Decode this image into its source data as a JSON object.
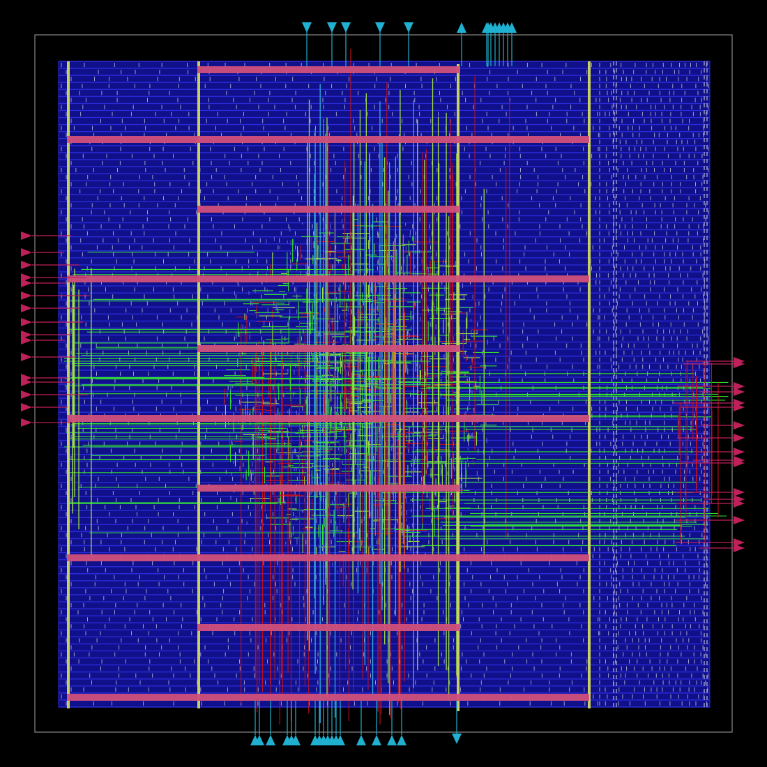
{
  "colors": {
    "background": "#000000",
    "die_boundary": "#8a8a8a",
    "core_area": "#10108a",
    "std_cell_row": "#2a2ad8",
    "cell_tick": "#b8b8d8",
    "power_stripe_horizontal": "#d0507a",
    "power_stripe_vertical": "#c8d060",
    "pin_horizontal": "#c0205a",
    "pin_vertical": "#20b0d0",
    "route_metal1": "#c01020",
    "route_metal2": "#30e030",
    "route_metal3": "#a0e040",
    "route_metal4": "#30b0e0",
    "route_metal5": "#e07030"
  },
  "layout": {
    "std_cell_rows": 92,
    "horizontal_power_stripes": [
      {
        "span": "partial"
      },
      {
        "span": "full"
      },
      {
        "span": "partial"
      },
      {
        "span": "full"
      },
      {
        "span": "partial"
      },
      {
        "span": "full"
      },
      {
        "span": "partial"
      },
      {
        "span": "full"
      },
      {
        "span": "partial"
      },
      {
        "span": "full"
      }
    ],
    "vertical_power_stripes": 4,
    "pins": {
      "top": 14,
      "bottom": 18,
      "left": 16,
      "right": 17
    }
  }
}
